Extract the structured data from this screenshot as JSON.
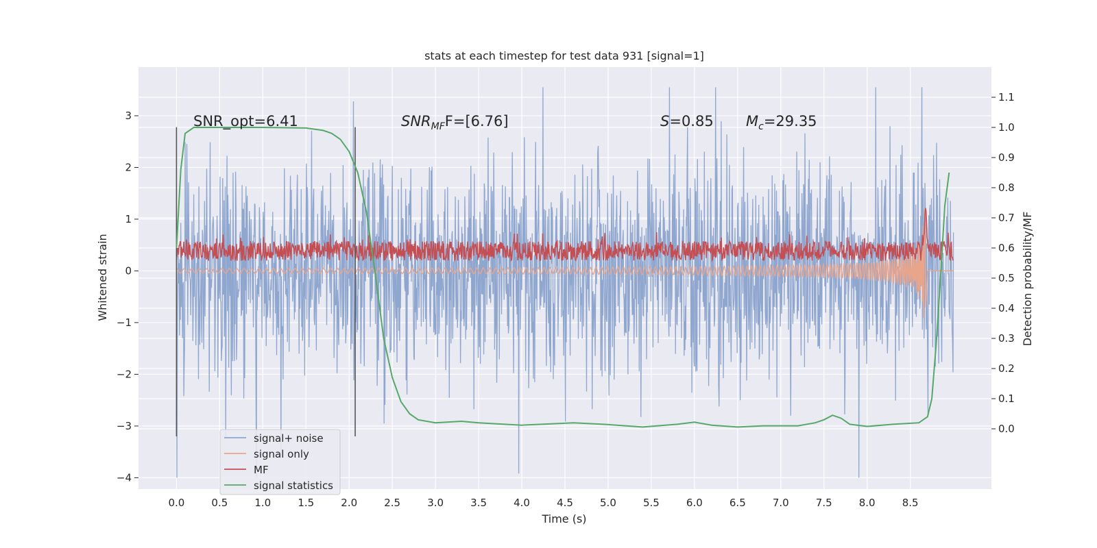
{
  "chart_data": {
    "type": "line",
    "title": "stats at each timestep for test data 931 [signal=1]",
    "xlabel": "Time (s)",
    "ylabel": "Whitened strain",
    "y2label": "Detection probability/MF",
    "xlim": [
      -0.44,
      9.44
    ],
    "ylim": [
      -4.22,
      3.94
    ],
    "y2lim": [
      -0.2,
      1.2
    ],
    "x_ticks": [
      "0.0",
      "0.5",
      "1.0",
      "1.5",
      "2.0",
      "2.5",
      "3.0",
      "3.5",
      "4.0",
      "4.5",
      "5.0",
      "5.5",
      "6.0",
      "6.5",
      "7.0",
      "7.5",
      "8.0",
      "8.5"
    ],
    "y_ticks": [
      "3",
      "2",
      "1",
      "0",
      "−1",
      "−2",
      "−3",
      "−4"
    ],
    "y2_ticks": [
      "1.1",
      "1.0",
      "0.9",
      "0.8",
      "0.7",
      "0.6",
      "0.5",
      "0.4",
      "0.3",
      "0.2",
      "0.1",
      "0.0"
    ],
    "grid": true,
    "legend_position": "lower-left",
    "duration_s": 9.0,
    "annotations": {
      "snr_opt": "SNR_opt=6.41",
      "snr_mf_a": "SNR",
      "snr_mf_sub": "MF",
      "snr_mf_b": "F=[6.76]",
      "s_var": "S",
      "s_val": "=0.85",
      "mc_var": "M",
      "mc_sub": "c",
      "mc_val": "=29.35"
    },
    "vertical_markers_x": [
      0.0,
      2.07
    ],
    "series": [
      {
        "name": "signal+ noise",
        "color": "#8fa6cf",
        "axis": "left",
        "description_values": "whitened noise dominated, mostly between -2.6 and 2.6, spikes up to 3.6 and down to -4.0"
      },
      {
        "name": "signal only",
        "color": "#e8a58c",
        "axis": "left",
        "chirp_peak_time": 8.68,
        "chirp_peak_amplitude": 1.35
      },
      {
        "name": "MF",
        "color": "#c44e52",
        "axis": "right",
        "baseline": 0.59,
        "peak_time": 8.68,
        "peak_value": 0.73
      },
      {
        "name": "signal statistics",
        "color": "#55a868",
        "axis": "right",
        "x": [
          0.0,
          0.05,
          0.1,
          0.15,
          0.2,
          0.3,
          0.5,
          1.0,
          1.5,
          1.7,
          1.8,
          1.9,
          2.0,
          2.1,
          2.2,
          2.3,
          2.4,
          2.5,
          2.6,
          2.7,
          2.8,
          3.0,
          3.3,
          3.5,
          4.0,
          4.6,
          5.0,
          5.4,
          5.8,
          6.0,
          6.2,
          6.5,
          6.8,
          7.2,
          7.4,
          7.5,
          7.6,
          7.7,
          7.8,
          8.0,
          8.3,
          8.6,
          8.7,
          8.75,
          8.8,
          8.85,
          8.9,
          8.95
        ],
        "y": [
          0.6,
          0.86,
          0.98,
          0.99,
          1.0,
          1.0,
          1.0,
          1.0,
          0.998,
          0.99,
          0.98,
          0.96,
          0.92,
          0.85,
          0.72,
          0.52,
          0.3,
          0.17,
          0.09,
          0.05,
          0.03,
          0.02,
          0.025,
          0.02,
          0.012,
          0.02,
          0.014,
          0.006,
          0.015,
          0.022,
          0.012,
          0.006,
          0.01,
          0.01,
          0.02,
          0.03,
          0.045,
          0.035,
          0.015,
          0.008,
          0.015,
          0.02,
          0.04,
          0.1,
          0.28,
          0.5,
          0.74,
          0.85
        ]
      }
    ]
  }
}
